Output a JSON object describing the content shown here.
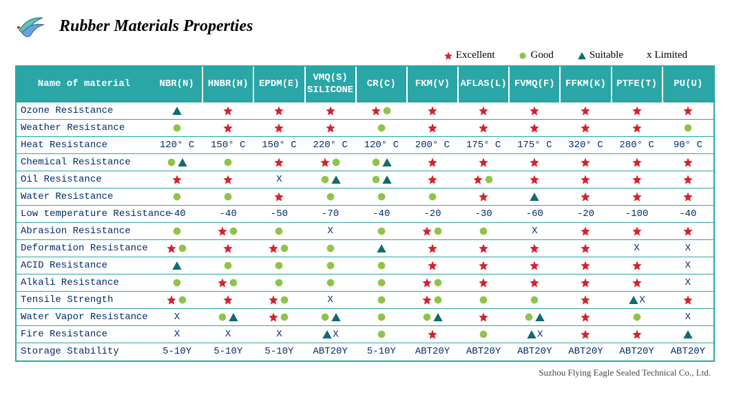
{
  "title": "Rubber Materials Properties",
  "footer": "Suzhou Flying Eagle Sealed Technical Co., Ltd.",
  "colors": {
    "teal": "#2aa6a6",
    "star": "#d4232a",
    "circle": "#8fc34a",
    "triangle": "#0f6b73",
    "text": "#002b6d",
    "bg": "#ffffff"
  },
  "legend": [
    {
      "symbol": "star",
      "label": "Excellent"
    },
    {
      "symbol": "circle",
      "label": "Good"
    },
    {
      "symbol": "triangle",
      "label": "Suitable"
    },
    {
      "symbol": "x",
      "label": "Limited"
    }
  ],
  "columns": [
    "Name of material",
    "NBR(N)",
    "HNBR(H)",
    "EPDM(E)",
    "VMQ(S)\nSILICONE",
    "CR(C)",
    "FKM(V)",
    "AFLAS(L)",
    "FVMQ(F)",
    "FFKM(K)",
    "PTFE(T)",
    "PU(U)"
  ],
  "rows": [
    {
      "name": "Ozone Resistance",
      "cells": [
        [
          "triangle"
        ],
        [
          "star"
        ],
        [
          "star"
        ],
        [
          "star"
        ],
        [
          "star",
          "circle"
        ],
        [
          "star"
        ],
        [
          "star"
        ],
        [
          "star"
        ],
        [
          "star"
        ],
        [
          "star"
        ],
        [
          "star"
        ]
      ]
    },
    {
      "name": "Weather Resistance",
      "cells": [
        [
          "circle"
        ],
        [
          "star"
        ],
        [
          "star"
        ],
        [
          "star"
        ],
        [
          "circle"
        ],
        [
          "star"
        ],
        [
          "star"
        ],
        [
          "star"
        ],
        [
          "star"
        ],
        [
          "star"
        ],
        [
          "circle"
        ]
      ]
    },
    {
      "name": "Heat Resistance",
      "cells": [
        "120° C",
        "150° C",
        "150° C",
        "220° C",
        "120° C",
        "200° C",
        "175° C",
        "175° C",
        "320° C",
        "280° C",
        "90° C"
      ]
    },
    {
      "name": "Chemical Resistance",
      "cells": [
        [
          "circle",
          "triangle"
        ],
        [
          "circle"
        ],
        [
          "star"
        ],
        [
          "star",
          "circle"
        ],
        [
          "circle",
          "triangle"
        ],
        [
          "star"
        ],
        [
          "star"
        ],
        [
          "star"
        ],
        [
          "star"
        ],
        [
          "star"
        ],
        [
          "star"
        ]
      ]
    },
    {
      "name": "Oil Resistance",
      "cells": [
        [
          "star"
        ],
        [
          "star"
        ],
        "X",
        [
          "circle",
          "triangle"
        ],
        [
          "circle",
          "triangle"
        ],
        [
          "star"
        ],
        [
          "star",
          "circle"
        ],
        [
          "star"
        ],
        [
          "star"
        ],
        [
          "star"
        ],
        [
          "star"
        ]
      ]
    },
    {
      "name": "Water Resistance",
      "cells": [
        [
          "circle"
        ],
        [
          "circle"
        ],
        [
          "star"
        ],
        [
          "circle"
        ],
        [
          "circle"
        ],
        [
          "circle"
        ],
        [
          "star"
        ],
        [
          "triangle"
        ],
        [
          "star"
        ],
        [
          "star"
        ],
        [
          "star"
        ]
      ]
    },
    {
      "name": "Low temperature Resistance",
      "cells": [
        "-40",
        "-40",
        "-50",
        "-70",
        "-40",
        "-20",
        "-30",
        "-60",
        "-20",
        "-100",
        "-40"
      ]
    },
    {
      "name": "Abrasion Resistance",
      "cells": [
        [
          "circle"
        ],
        [
          "star",
          "circle"
        ],
        [
          "circle"
        ],
        "X",
        [
          "circle"
        ],
        [
          "star",
          "circle"
        ],
        [
          "circle"
        ],
        "X",
        [
          "star"
        ],
        [
          "star"
        ],
        [
          "star"
        ]
      ]
    },
    {
      "name": "Deformation Resistance",
      "cells": [
        [
          "star",
          "circle"
        ],
        [
          "star"
        ],
        [
          "star",
          "circle"
        ],
        [
          "circle"
        ],
        [
          "triangle"
        ],
        [
          "star"
        ],
        [
          "star"
        ],
        [
          "star"
        ],
        [
          "star"
        ],
        "X",
        "X"
      ]
    },
    {
      "name": "ACID Resistance",
      "cells": [
        [
          "triangle"
        ],
        [
          "circle"
        ],
        [
          "circle"
        ],
        [
          "circle"
        ],
        [
          "circle"
        ],
        [
          "star"
        ],
        [
          "star"
        ],
        [
          "star"
        ],
        [
          "star"
        ],
        [
          "star"
        ],
        "X"
      ]
    },
    {
      "name": "Alkali Resistance",
      "cells": [
        [
          "circle"
        ],
        [
          "star",
          "circle"
        ],
        [
          "circle"
        ],
        [
          "circle"
        ],
        [
          "circle"
        ],
        [
          "star",
          "circle"
        ],
        [
          "star"
        ],
        [
          "star"
        ],
        [
          "star"
        ],
        [
          "star"
        ],
        "X"
      ]
    },
    {
      "name": "Tensile Strength",
      "cells": [
        [
          "star",
          "circle"
        ],
        [
          "star"
        ],
        [
          "star",
          "circle"
        ],
        "X",
        [
          "circle"
        ],
        [
          "star",
          "circle"
        ],
        [
          "circle"
        ],
        [
          "circle"
        ],
        [
          "star"
        ],
        [
          [
            "triangle"
          ],
          "X"
        ],
        [
          "star"
        ]
      ]
    },
    {
      "name": "Water Vapor Resistance",
      "cells": [
        "X",
        [
          "circle",
          "triangle"
        ],
        [
          "star",
          "circle"
        ],
        [
          "circle",
          "triangle"
        ],
        [
          "circle"
        ],
        [
          "circle",
          "triangle"
        ],
        [
          "star"
        ],
        [
          "circle",
          "triangle"
        ],
        [
          "star"
        ],
        [
          "circle"
        ],
        "X"
      ]
    },
    {
      "name": "Fire Resistance",
      "cells": [
        "X",
        "X",
        "X",
        [
          [
            "triangle"
          ],
          "X"
        ],
        [
          "circle"
        ],
        [
          "star"
        ],
        [
          "circle"
        ],
        [
          [
            "triangle"
          ],
          "X"
        ],
        [
          "star"
        ],
        [
          "star"
        ],
        [
          "triangle"
        ]
      ]
    },
    {
      "name": "Storage Stability",
      "cells": [
        "5-10Y",
        "5-10Y",
        "5-10Y",
        "ABT20Y",
        "5-10Y",
        "ABT20Y",
        "ABT20Y",
        "ABT20Y",
        "ABT20Y",
        "ABT20Y",
        "ABT20Y"
      ]
    }
  ]
}
